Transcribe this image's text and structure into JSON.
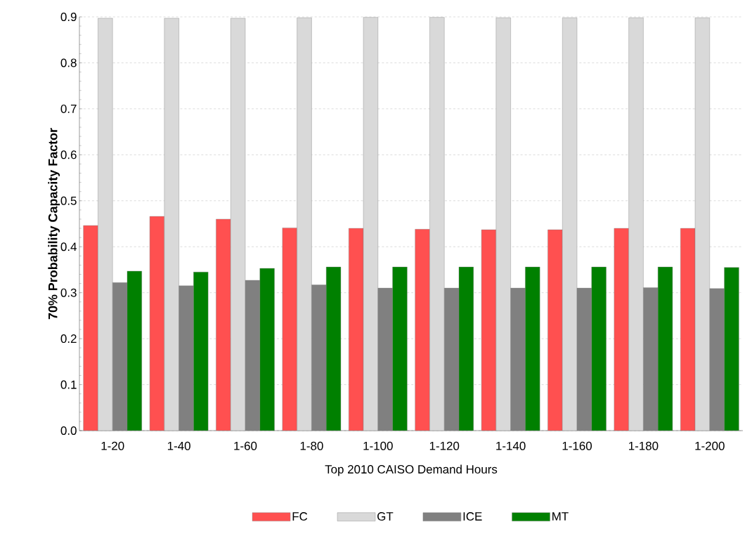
{
  "chart_data": {
    "type": "bar",
    "xlabel": "Top 2010 CAISO Demand Hours",
    "ylabel": "70% Probability Capacity Factor",
    "categories": [
      "1-20",
      "1-40",
      "1-60",
      "1-80",
      "1-100",
      "1-120",
      "1-140",
      "1-160",
      "1-180",
      "1-200"
    ],
    "series": [
      {
        "name": "FC",
        "color": "#ff5050",
        "values": [
          0.446,
          0.466,
          0.46,
          0.441,
          0.44,
          0.438,
          0.437,
          0.437,
          0.44,
          0.44
        ]
      },
      {
        "name": "GT",
        "color": "#d9d9d9",
        "values": [
          0.897,
          0.897,
          0.897,
          0.898,
          0.899,
          0.899,
          0.898,
          0.898,
          0.898,
          0.898
        ]
      },
      {
        "name": "ICE",
        "color": "#808080",
        "values": [
          0.322,
          0.315,
          0.327,
          0.317,
          0.31,
          0.31,
          0.31,
          0.31,
          0.311,
          0.309
        ]
      },
      {
        "name": "MT",
        "color": "#008000",
        "values": [
          0.347,
          0.345,
          0.353,
          0.356,
          0.356,
          0.356,
          0.356,
          0.356,
          0.356,
          0.355
        ]
      }
    ],
    "ylim": [
      0,
      0.9
    ],
    "yticks": [
      {
        "value": 0,
        "label": "0.0"
      },
      0.1,
      0.2,
      0.3,
      0.4,
      0.5,
      0.6,
      0.7,
      0.8,
      0.9
    ],
    "grid": "y",
    "legend": "bottom"
  }
}
